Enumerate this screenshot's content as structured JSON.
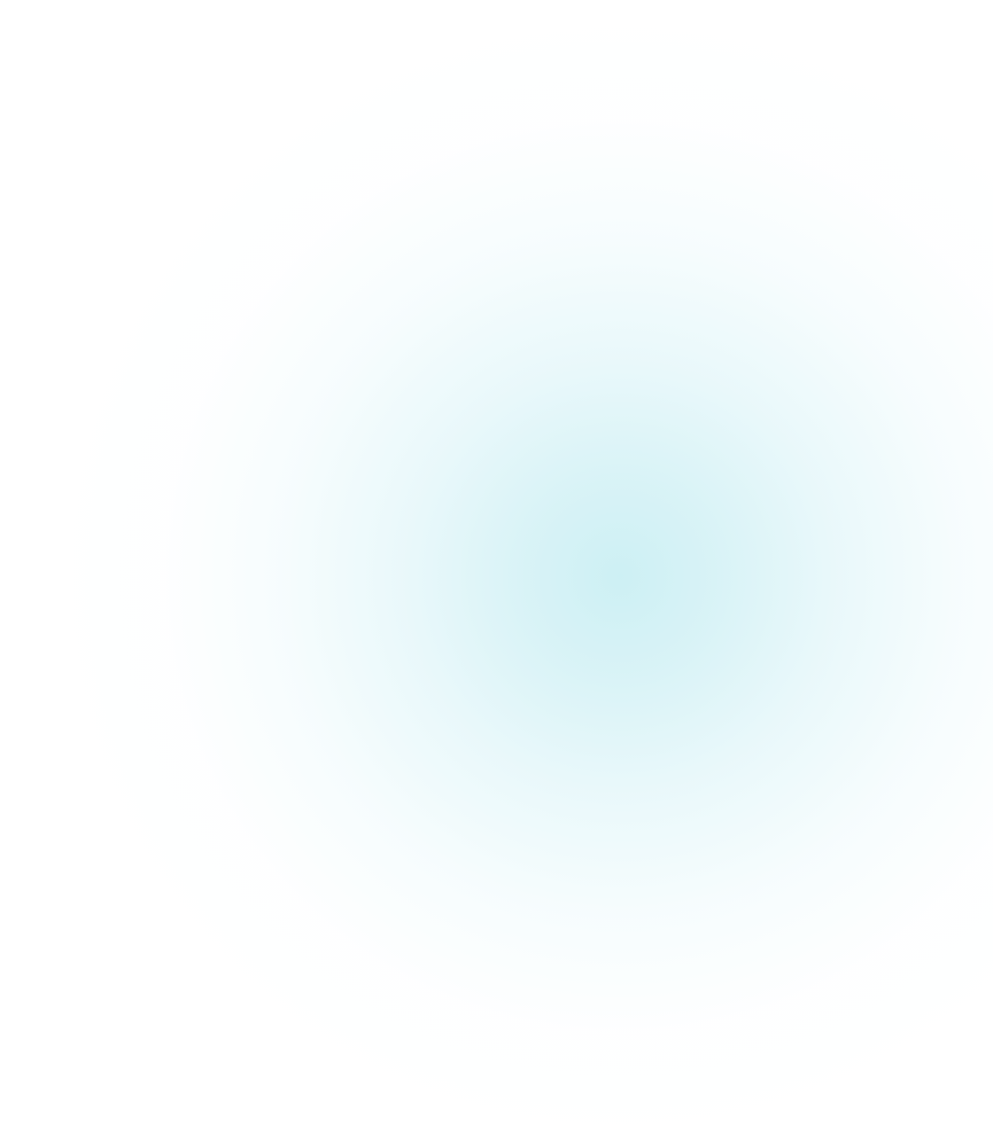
{
  "background": {
    "base_color": "#ffffff",
    "glow_color": "#cdf0f4"
  }
}
